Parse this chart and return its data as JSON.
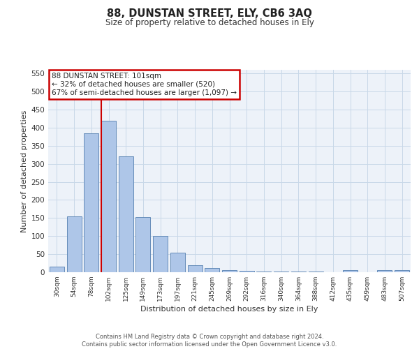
{
  "title1": "88, DUNSTAN STREET, ELY, CB6 3AQ",
  "title2": "Size of property relative to detached houses in Ely",
  "xlabel": "Distribution of detached houses by size in Ely",
  "ylabel": "Number of detached properties",
  "categories": [
    "30sqm",
    "54sqm",
    "78sqm",
    "102sqm",
    "125sqm",
    "149sqm",
    "173sqm",
    "197sqm",
    "221sqm",
    "245sqm",
    "269sqm",
    "292sqm",
    "316sqm",
    "340sqm",
    "364sqm",
    "388sqm",
    "412sqm",
    "435sqm",
    "459sqm",
    "483sqm",
    "507sqm"
  ],
  "values": [
    15,
    155,
    385,
    420,
    320,
    152,
    100,
    55,
    20,
    11,
    5,
    3,
    2,
    1,
    1,
    1,
    0,
    5,
    0,
    5,
    5
  ],
  "bar_color": "#aec6e8",
  "bar_edge_color": "#5580b0",
  "grid_color": "#c8d8e8",
  "vline_color": "#cc0000",
  "annotation_text": "88 DUNSTAN STREET: 101sqm\n← 32% of detached houses are smaller (520)\n67% of semi-detached houses are larger (1,097) →",
  "annotation_box_color": "#ffffff",
  "annotation_box_edge": "#cc0000",
  "ylim": [
    0,
    560
  ],
  "yticks": [
    0,
    50,
    100,
    150,
    200,
    250,
    300,
    350,
    400,
    450,
    500,
    550
  ],
  "footer": "Contains HM Land Registry data © Crown copyright and database right 2024.\nContains public sector information licensed under the Open Government Licence v3.0.",
  "bg_color": "#edf2f9"
}
